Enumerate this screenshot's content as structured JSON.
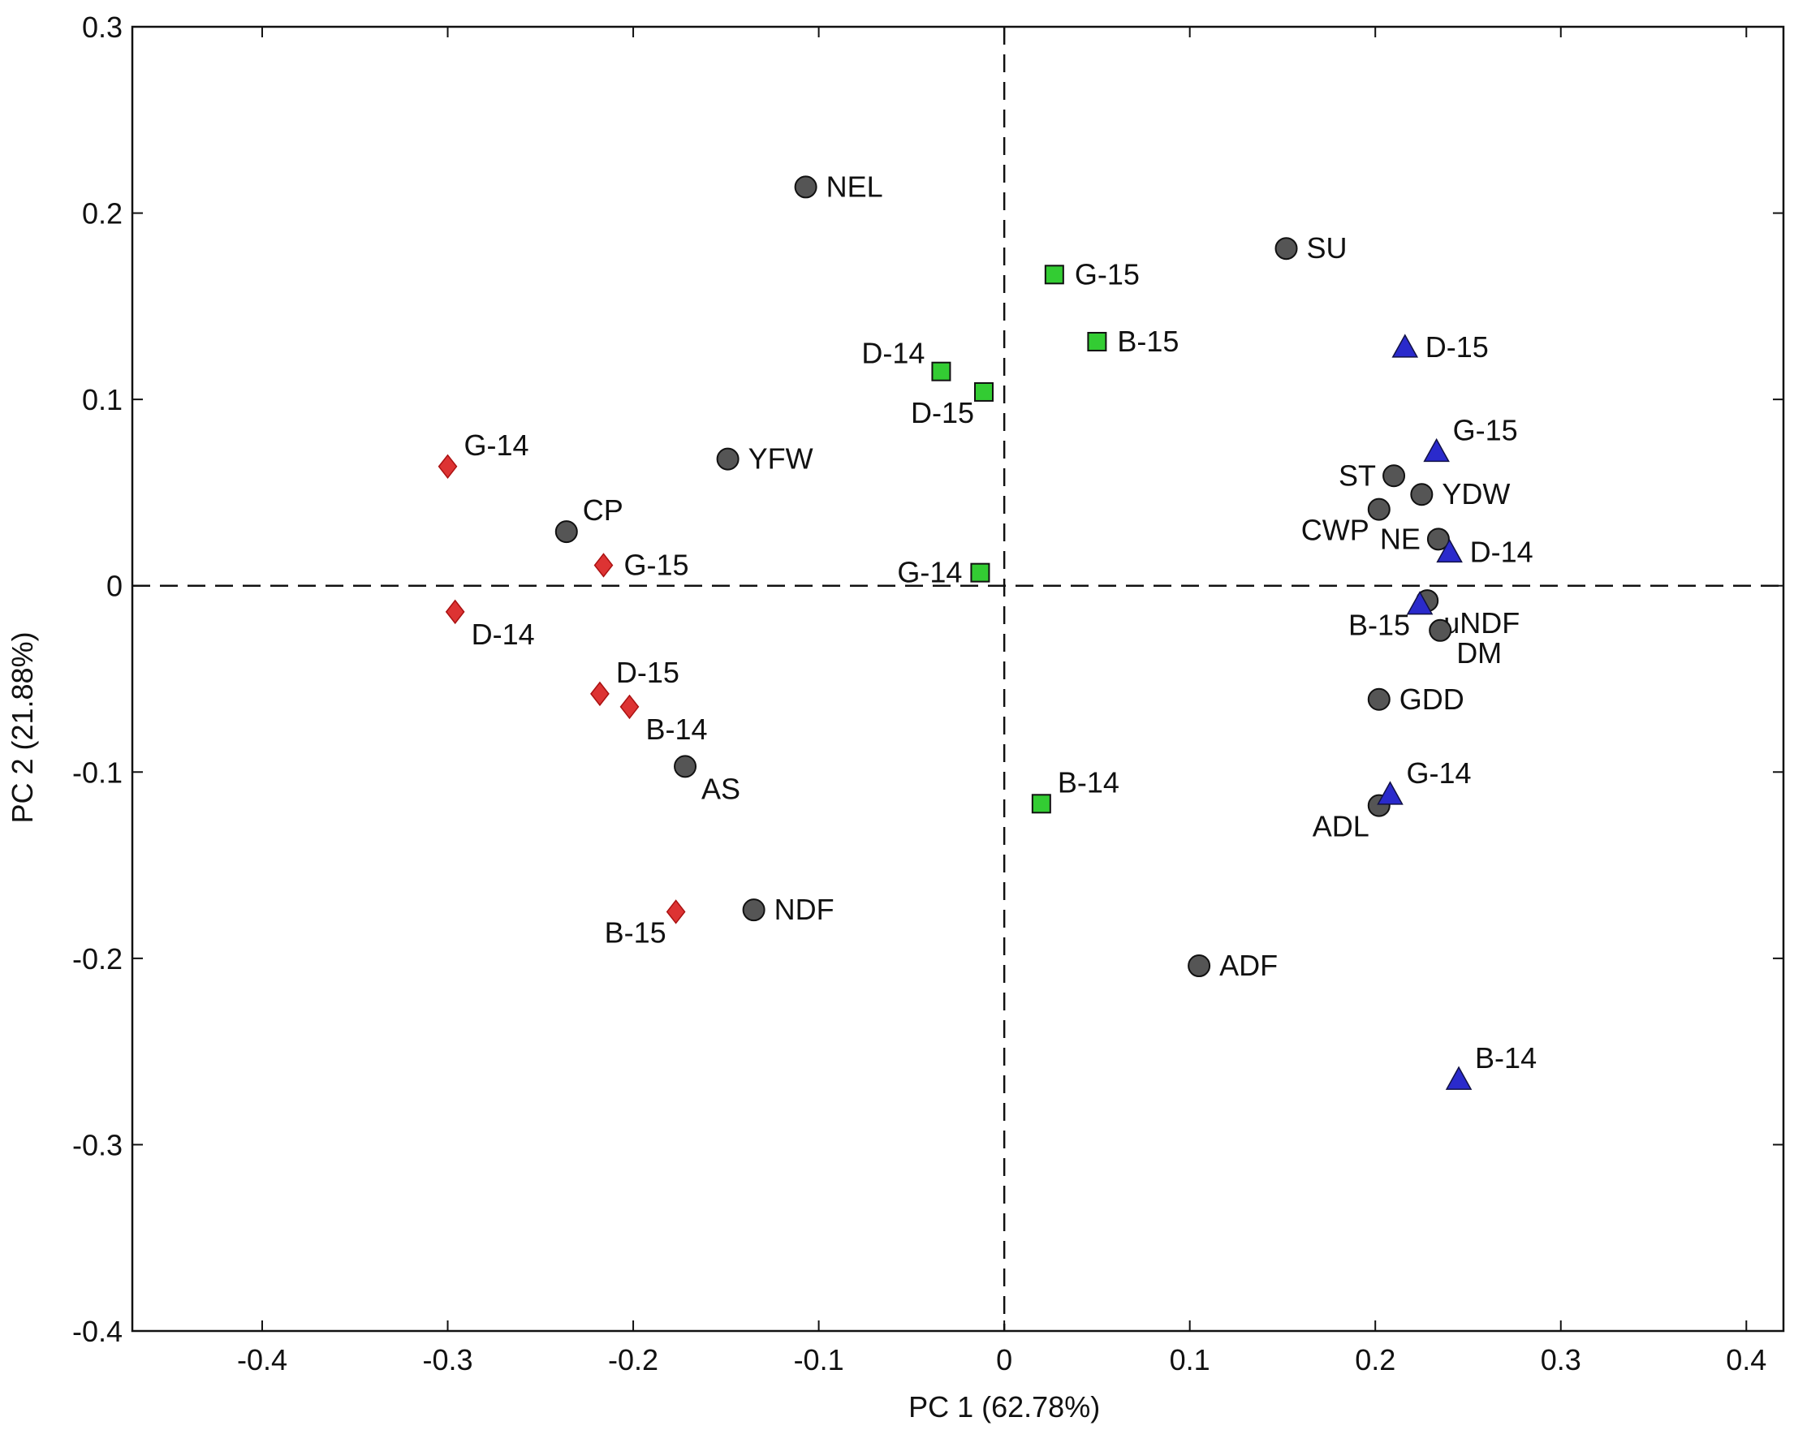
{
  "chart_data": {
    "type": "scatter",
    "title": "",
    "xlabel": "PC 1 (62.78%)",
    "ylabel": "PC 2 (21.88%)",
    "xlim": [
      -0.47,
      0.42
    ],
    "ylim": [
      -0.4,
      0.3
    ],
    "xticks": [
      -0.4,
      -0.3,
      -0.2,
      -0.1,
      0,
      0.1,
      0.2,
      0.3,
      0.4
    ],
    "xtick_labels": [
      "-0.4",
      "-0.3",
      "-0.2",
      "-0.1",
      "0",
      "0.1",
      "0.2",
      "0.3",
      "0.4"
    ],
    "yticks": [
      0.3,
      0.2,
      0.1,
      0,
      -0.1,
      -0.2,
      -0.3,
      -0.4
    ],
    "ytick_labels": [
      "0.3",
      "0.2",
      "0.1",
      "0",
      "-0.1",
      "-0.2",
      "-0.3",
      "-0.4"
    ],
    "reference_lines": {
      "x": 0,
      "y": 0,
      "style": "dashed"
    },
    "grid": false,
    "colors": {
      "variable": "#555555",
      "red_group": "#dd3333",
      "green_group": "#33cc33",
      "blue_group": "#2a2acc"
    },
    "series": [
      {
        "name": "variables",
        "marker": "circle",
        "color": "#555555",
        "points": [
          {
            "label": "NEL",
            "x": -0.107,
            "y": 0.214,
            "anchor": "right"
          },
          {
            "label": "SU",
            "x": 0.152,
            "y": 0.181,
            "anchor": "right"
          },
          {
            "label": "YFW",
            "x": -0.149,
            "y": 0.068,
            "anchor": "right"
          },
          {
            "label": "CP",
            "x": -0.236,
            "y": 0.029,
            "anchor": "upper-right"
          },
          {
            "label": "ST",
            "x": 0.21,
            "y": 0.059,
            "anchor": "left"
          },
          {
            "label": "YDW",
            "x": 0.225,
            "y": 0.049,
            "anchor": "right"
          },
          {
            "label": "CWP",
            "x": 0.202,
            "y": 0.041,
            "anchor": "lower-left"
          },
          {
            "label": "NE",
            "x": 0.234,
            "y": 0.025,
            "anchor": "left"
          },
          {
            "label": "uNDF",
            "x": 0.228,
            "y": -0.008,
            "anchor": "lower-right"
          },
          {
            "label": "DM",
            "x": 0.235,
            "y": -0.024,
            "anchor": "lower-right"
          },
          {
            "label": "GDD",
            "x": 0.202,
            "y": -0.061,
            "anchor": "right"
          },
          {
            "label": "ADL",
            "x": 0.202,
            "y": -0.118,
            "anchor": "lower-left"
          },
          {
            "label": "AS",
            "x": -0.172,
            "y": -0.097,
            "anchor": "lower-right"
          },
          {
            "label": "NDF",
            "x": -0.135,
            "y": -0.174,
            "anchor": "right"
          },
          {
            "label": "ADF",
            "x": 0.105,
            "y": -0.204,
            "anchor": "right"
          }
        ]
      },
      {
        "name": "red diamonds",
        "marker": "diamond",
        "color": "#dd3333",
        "points": [
          {
            "label": "G-14",
            "x": -0.3,
            "y": 0.064,
            "anchor": "upper-right"
          },
          {
            "label": "G-15",
            "x": -0.216,
            "y": 0.011,
            "anchor": "right"
          },
          {
            "label": "D-14",
            "x": -0.296,
            "y": -0.014,
            "anchor": "lower-right"
          },
          {
            "label": "D-15",
            "x": -0.218,
            "y": -0.058,
            "anchor": "upper-right"
          },
          {
            "label": "B-14",
            "x": -0.202,
            "y": -0.065,
            "anchor": "lower-right"
          },
          {
            "label": "B-15",
            "x": -0.177,
            "y": -0.175,
            "anchor": "lower-left"
          }
        ]
      },
      {
        "name": "green squares",
        "marker": "square",
        "color": "#33cc33",
        "points": [
          {
            "label": "G-15",
            "x": 0.027,
            "y": 0.167,
            "anchor": "right"
          },
          {
            "label": "B-15",
            "x": 0.05,
            "y": 0.131,
            "anchor": "right"
          },
          {
            "label": "D-14",
            "x": -0.034,
            "y": 0.115,
            "anchor": "upper-left"
          },
          {
            "label": "D-15",
            "x": -0.011,
            "y": 0.104,
            "anchor": "lower-left"
          },
          {
            "label": "G-14",
            "x": -0.013,
            "y": 0.007,
            "anchor": "left"
          },
          {
            "label": "B-14",
            "x": 0.02,
            "y": -0.117,
            "anchor": "upper-right"
          }
        ]
      },
      {
        "name": "blue triangles",
        "marker": "triangle",
        "color": "#2a2acc",
        "points": [
          {
            "label": "D-15",
            "x": 0.216,
            "y": 0.128,
            "anchor": "right"
          },
          {
            "label": "G-15",
            "x": 0.233,
            "y": 0.072,
            "anchor": "upper-right"
          },
          {
            "label": "D-14",
            "x": 0.24,
            "y": 0.018,
            "anchor": "right"
          },
          {
            "label": "B-15",
            "x": 0.224,
            "y": -0.01,
            "anchor": "lower-left"
          },
          {
            "label": "G-14",
            "x": 0.208,
            "y": -0.112,
            "anchor": "upper-right"
          },
          {
            "label": "B-14",
            "x": 0.245,
            "y": -0.265,
            "anchor": "upper-right"
          }
        ]
      }
    ]
  }
}
